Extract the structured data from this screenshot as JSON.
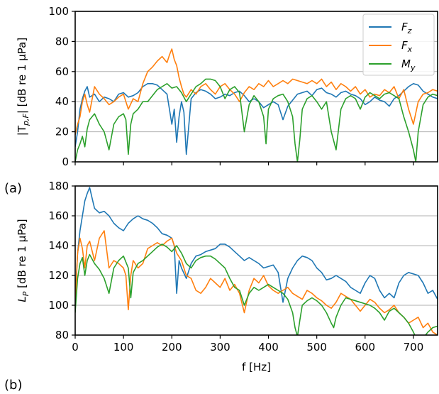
{
  "panel_labels": [
    "(a)",
    "(b)"
  ],
  "chart_data": [
    {
      "type": "line",
      "panel": "(a)",
      "ylabel": "|T_{p,F}| [dB re 1 µPa]",
      "ylabel_main": "|T",
      "ylabel_sub": "p,F",
      "ylabel_rest": "| [dB re 1 µPa]",
      "xlabel": "",
      "xlim": [
        0,
        750
      ],
      "ylim": [
        0,
        100
      ],
      "yticks": [
        0,
        20,
        40,
        60,
        80,
        100
      ],
      "xticks": [
        0,
        100,
        200,
        300,
        400,
        500,
        600,
        700
      ],
      "grid": "horizontal",
      "legend_position": "top-right",
      "legend": [
        {
          "name": "Fz",
          "base": "F",
          "sub": "z",
          "color": "#1f77b4"
        },
        {
          "name": "Fx",
          "base": "F",
          "sub": "x",
          "color": "#ff7f0e"
        },
        {
          "name": "My",
          "base": "M",
          "sub": "y",
          "color": "#2ca02c"
        }
      ],
      "series": [
        {
          "name": "Fz",
          "color": "#1f77b4",
          "x": [
            0,
            5,
            10,
            15,
            20,
            25,
            30,
            40,
            50,
            60,
            70,
            80,
            90,
            100,
            110,
            120,
            130,
            140,
            150,
            160,
            170,
            180,
            190,
            195,
            200,
            205,
            210,
            215,
            220,
            225,
            230,
            240,
            250,
            260,
            270,
            280,
            290,
            300,
            310,
            320,
            330,
            340,
            350,
            360,
            370,
            380,
            390,
            400,
            410,
            420,
            430,
            440,
            450,
            460,
            470,
            480,
            490,
            500,
            510,
            520,
            530,
            540,
            550,
            560,
            570,
            580,
            590,
            600,
            610,
            620,
            630,
            640,
            650,
            660,
            670,
            680,
            690,
            700,
            710,
            720,
            730,
            740,
            750
          ],
          "y": [
            10,
            20,
            35,
            42,
            47,
            50,
            43,
            45,
            40,
            43,
            42,
            40,
            45,
            46,
            43,
            44,
            46,
            50,
            52,
            52,
            51,
            48,
            45,
            35,
            25,
            35,
            13,
            30,
            40,
            33,
            5,
            42,
            46,
            48,
            47,
            45,
            42,
            43,
            45,
            44,
            46,
            47,
            44,
            40,
            42,
            40,
            36,
            38,
            40,
            38,
            28,
            37,
            41,
            45,
            46,
            47,
            44,
            48,
            49,
            46,
            45,
            43,
            46,
            47,
            45,
            44,
            42,
            38,
            40,
            43,
            41,
            40,
            37,
            42,
            44,
            47,
            50,
            52,
            51,
            47,
            45,
            43,
            42
          ]
        },
        {
          "name": "Fx",
          "color": "#ff7f0e",
          "x": [
            0,
            5,
            10,
            15,
            20,
            25,
            30,
            40,
            50,
            60,
            70,
            80,
            90,
            100,
            110,
            120,
            130,
            140,
            150,
            160,
            170,
            180,
            190,
            195,
            200,
            205,
            210,
            215,
            220,
            225,
            230,
            240,
            250,
            260,
            270,
            280,
            290,
            300,
            310,
            320,
            330,
            340,
            350,
            360,
            370,
            380,
            390,
            400,
            410,
            420,
            430,
            440,
            450,
            460,
            470,
            480,
            490,
            500,
            510,
            520,
            530,
            540,
            550,
            560,
            570,
            580,
            590,
            600,
            610,
            620,
            630,
            640,
            650,
            660,
            670,
            680,
            690,
            700,
            710,
            720,
            730,
            740,
            750
          ],
          "y": [
            18,
            25,
            30,
            40,
            45,
            38,
            33,
            50,
            45,
            42,
            38,
            40,
            43,
            45,
            35,
            42,
            40,
            52,
            60,
            63,
            67,
            70,
            66,
            71,
            75,
            68,
            64,
            56,
            50,
            45,
            43,
            48,
            45,
            50,
            52,
            48,
            45,
            50,
            52,
            48,
            45,
            40,
            46,
            50,
            48,
            52,
            50,
            54,
            50,
            52,
            54,
            52,
            55,
            54,
            53,
            52,
            54,
            52,
            55,
            50,
            53,
            48,
            52,
            50,
            47,
            50,
            45,
            48,
            43,
            45,
            44,
            48,
            46,
            50,
            42,
            48,
            35,
            25,
            40,
            45,
            46,
            48,
            47
          ]
        },
        {
          "name": "My",
          "color": "#2ca02c",
          "x": [
            0,
            5,
            10,
            15,
            20,
            25,
            30,
            40,
            50,
            60,
            70,
            80,
            90,
            100,
            105,
            110,
            115,
            120,
            130,
            140,
            150,
            160,
            170,
            180,
            190,
            200,
            210,
            220,
            230,
            240,
            250,
            260,
            270,
            280,
            290,
            300,
            310,
            320,
            330,
            340,
            350,
            360,
            370,
            380,
            390,
            395,
            400,
            410,
            420,
            430,
            440,
            450,
            455,
            460,
            465,
            470,
            480,
            490,
            500,
            510,
            520,
            530,
            540,
            550,
            560,
            570,
            580,
            590,
            600,
            610,
            620,
            630,
            640,
            650,
            660,
            670,
            680,
            690,
            700,
            705,
            710,
            720,
            730,
            740,
            750
          ],
          "y": [
            0,
            8,
            12,
            17,
            10,
            22,
            28,
            32,
            25,
            20,
            8,
            25,
            30,
            32,
            28,
            5,
            25,
            32,
            35,
            40,
            40,
            44,
            48,
            50,
            52,
            49,
            50,
            46,
            40,
            45,
            50,
            52,
            55,
            55,
            54,
            50,
            42,
            48,
            50,
            46,
            20,
            38,
            44,
            40,
            30,
            12,
            35,
            42,
            44,
            45,
            40,
            30,
            12,
            0,
            15,
            35,
            42,
            44,
            40,
            35,
            40,
            20,
            8,
            35,
            42,
            44,
            42,
            35,
            43,
            46,
            44,
            42,
            45,
            46,
            44,
            42,
            30,
            20,
            8,
            0,
            20,
            38,
            43,
            45,
            44
          ]
        }
      ]
    },
    {
      "type": "line",
      "panel": "(b)",
      "ylabel": "L_P [dB re 1 µPa]",
      "ylabel_main": "L",
      "ylabel_sub": "P",
      "ylabel_rest": " [dB re 1 µPa]",
      "xlabel": "f [Hz]",
      "xlim": [
        0,
        750
      ],
      "ylim": [
        80,
        180
      ],
      "yticks": [
        80,
        100,
        120,
        140,
        160,
        180
      ],
      "xticks": [
        0,
        100,
        200,
        300,
        400,
        500,
        600,
        700
      ],
      "grid": "horizontal",
      "series": [
        {
          "name": "Fz",
          "color": "#1f77b4",
          "x": [
            0,
            5,
            10,
            15,
            20,
            25,
            30,
            35,
            40,
            50,
            60,
            70,
            80,
            90,
            100,
            110,
            120,
            130,
            140,
            150,
            160,
            170,
            180,
            190,
            200,
            205,
            210,
            215,
            220,
            230,
            240,
            250,
            260,
            270,
            280,
            290,
            300,
            310,
            320,
            330,
            340,
            350,
            360,
            370,
            380,
            390,
            400,
            410,
            420,
            430,
            440,
            450,
            460,
            470,
            480,
            490,
            500,
            510,
            520,
            530,
            540,
            550,
            560,
            570,
            580,
            590,
            600,
            610,
            620,
            630,
            640,
            650,
            660,
            670,
            680,
            690,
            700,
            710,
            720,
            730,
            740,
            750
          ],
          "y": [
            105,
            135,
            150,
            160,
            170,
            175,
            179,
            172,
            165,
            162,
            163,
            160,
            155,
            152,
            150,
            155,
            158,
            160,
            158,
            157,
            155,
            152,
            148,
            147,
            145,
            140,
            108,
            130,
            125,
            118,
            128,
            133,
            134,
            136,
            137,
            138,
            141,
            141,
            139,
            136,
            133,
            130,
            132,
            130,
            128,
            125,
            126,
            127,
            122,
            102,
            118,
            125,
            130,
            133,
            132,
            130,
            125,
            122,
            117,
            118,
            120,
            118,
            116,
            112,
            110,
            108,
            115,
            120,
            118,
            110,
            105,
            108,
            105,
            115,
            120,
            122,
            121,
            120,
            115,
            108,
            110,
            104
          ]
        },
        {
          "name": "Fx",
          "color": "#ff7f0e",
          "x": [
            0,
            5,
            10,
            15,
            20,
            25,
            30,
            40,
            50,
            60,
            70,
            80,
            90,
            100,
            105,
            110,
            115,
            120,
            130,
            140,
            150,
            160,
            170,
            180,
            190,
            200,
            210,
            220,
            230,
            240,
            250,
            260,
            270,
            280,
            290,
            300,
            310,
            320,
            330,
            340,
            350,
            360,
            370,
            380,
            390,
            400,
            410,
            420,
            430,
            440,
            450,
            460,
            470,
            480,
            490,
            500,
            510,
            520,
            530,
            540,
            550,
            560,
            570,
            580,
            590,
            600,
            610,
            620,
            630,
            640,
            650,
            660,
            670,
            680,
            690,
            700,
            710,
            720,
            730,
            740,
            750
          ],
          "y": [
            100,
            135,
            145,
            138,
            125,
            140,
            143,
            130,
            145,
            150,
            125,
            130,
            128,
            125,
            120,
            97,
            120,
            130,
            125,
            128,
            138,
            140,
            142,
            140,
            143,
            145,
            135,
            130,
            120,
            118,
            110,
            108,
            112,
            118,
            115,
            112,
            118,
            110,
            114,
            108,
            95,
            110,
            118,
            115,
            120,
            113,
            110,
            108,
            110,
            112,
            108,
            106,
            104,
            110,
            108,
            105,
            103,
            100,
            98,
            102,
            108,
            106,
            104,
            100,
            96,
            100,
            104,
            102,
            98,
            95,
            97,
            100,
            95,
            92,
            88,
            90,
            92,
            85,
            88,
            82,
            80
          ]
        },
        {
          "name": "My",
          "color": "#2ca02c",
          "x": [
            0,
            5,
            10,
            15,
            20,
            25,
            30,
            40,
            50,
            60,
            70,
            80,
            90,
            100,
            110,
            115,
            120,
            130,
            140,
            150,
            160,
            170,
            180,
            190,
            200,
            210,
            220,
            230,
            240,
            250,
            260,
            270,
            280,
            290,
            300,
            310,
            320,
            330,
            340,
            350,
            360,
            370,
            380,
            390,
            400,
            410,
            420,
            430,
            440,
            450,
            455,
            460,
            465,
            470,
            480,
            490,
            500,
            510,
            520,
            530,
            535,
            540,
            550,
            560,
            570,
            580,
            590,
            600,
            610,
            620,
            630,
            640,
            650,
            660,
            670,
            680,
            690,
            700,
            710,
            720,
            730,
            740,
            750
          ],
          "y": [
            95,
            118,
            128,
            132,
            120,
            130,
            134,
            128,
            124,
            118,
            108,
            125,
            130,
            133,
            125,
            105,
            122,
            128,
            130,
            133,
            136,
            139,
            141,
            139,
            136,
            140,
            135,
            128,
            125,
            130,
            132,
            133,
            133,
            131,
            128,
            125,
            118,
            112,
            110,
            100,
            108,
            112,
            110,
            112,
            114,
            112,
            110,
            108,
            104,
            95,
            85,
            79,
            90,
            100,
            103,
            105,
            103,
            100,
            95,
            88,
            85,
            92,
            100,
            105,
            104,
            103,
            102,
            101,
            100,
            98,
            95,
            90,
            96,
            98,
            95,
            92,
            88,
            82,
            75,
            78,
            82,
            85,
            86
          ]
        }
      ]
    }
  ]
}
